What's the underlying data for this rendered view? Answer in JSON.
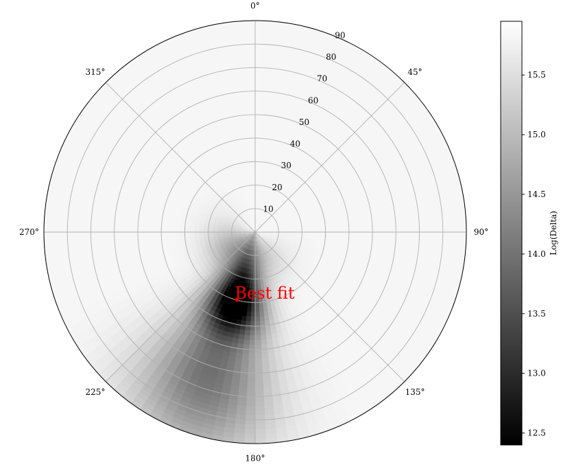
{
  "chart_data": {
    "type": "heatmap",
    "projection": "polar",
    "theta_zero_location": "top",
    "theta_direction": "clockwise",
    "theta_ticks": [
      {
        "angle": 0,
        "label": "0°"
      },
      {
        "angle": 45,
        "label": "45°"
      },
      {
        "angle": 90,
        "label": "90°"
      },
      {
        "angle": 135,
        "label": "135°"
      },
      {
        "angle": 180,
        "label": "180°"
      },
      {
        "angle": 225,
        "label": "225°"
      },
      {
        "angle": 270,
        "label": "270°"
      },
      {
        "angle": 315,
        "label": "315°"
      }
    ],
    "r_ticks": [
      {
        "value": 10,
        "label": "10"
      },
      {
        "value": 20,
        "label": "20"
      },
      {
        "value": 30,
        "label": "30"
      },
      {
        "value": 40,
        "label": "40"
      },
      {
        "value": 50,
        "label": "50"
      },
      {
        "value": 60,
        "label": "60"
      },
      {
        "value": 70,
        "label": "70"
      },
      {
        "value": 80,
        "label": "80"
      },
      {
        "value": 90,
        "label": "90"
      }
    ],
    "rlim": [
      0,
      90
    ],
    "grid": true,
    "colormap": "gray",
    "colorbar": {
      "label": "Log(Delta)",
      "range": [
        12.4,
        15.95
      ],
      "ticks": [
        {
          "value": 12.5,
          "label": "12.5"
        },
        {
          "value": 13.0,
          "label": "13.0"
        },
        {
          "value": 13.5,
          "label": "13.5"
        },
        {
          "value": 14.0,
          "label": "14.0"
        },
        {
          "value": 14.5,
          "label": "14.5"
        },
        {
          "value": 15.0,
          "label": "15.0"
        },
        {
          "value": 15.5,
          "label": "15.5"
        }
      ]
    },
    "field": {
      "base": 15.9,
      "minima": [
        {
          "theta": 195,
          "r": 30,
          "depth": 3.4,
          "sigma_r": 10,
          "sigma_theta": 14
        },
        {
          "theta": 198,
          "r": 62,
          "depth": 1.9,
          "sigma_r": 25,
          "sigma_theta": 16
        },
        {
          "theta": 210,
          "r": 10,
          "depth": 1.5,
          "sigma_r": 9,
          "sigma_theta": 45
        }
      ]
    },
    "best_fit": {
      "theta": 195,
      "r": 30,
      "label": "Best fit",
      "color": "#ff0000"
    }
  }
}
